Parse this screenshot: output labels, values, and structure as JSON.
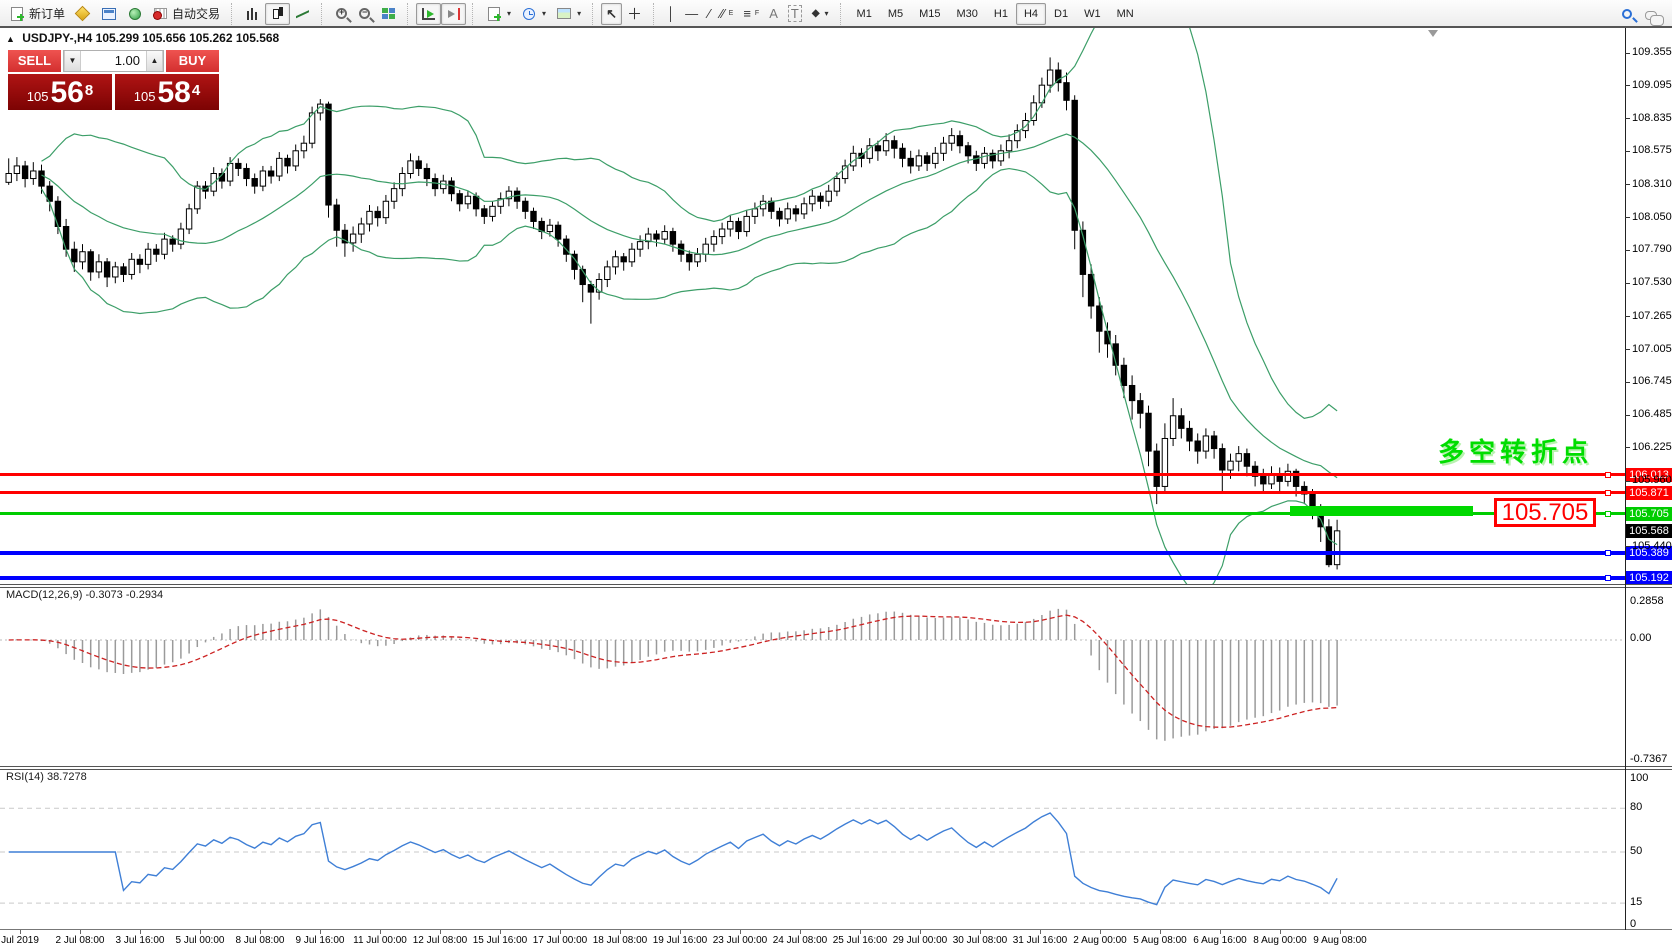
{
  "colors": {
    "line_red": "#ff0000",
    "line_green": "#00cc00",
    "line_blue": "#0000ff",
    "band_green": "#3c9e68",
    "rsi_blue": "#3f7fd6",
    "macd_signal": "#cc2222",
    "annotation_green": "#00dd00",
    "current_black": "#000000"
  },
  "toolbar": {
    "new_order": "新订单",
    "auto_trading": "自动交易",
    "channel_letter": "E",
    "fibonacci_letter": "F",
    "text_letter": "A",
    "label_letter": "T",
    "timeframes": [
      "M1",
      "M5",
      "M15",
      "M30",
      "H1",
      "H4",
      "D1",
      "W1",
      "MN"
    ],
    "active_timeframe": "H4"
  },
  "chart_header": {
    "symbol_period": "USDJPY-,H4",
    "open": "105.299",
    "high": "105.656",
    "low": "105.262",
    "close": "105.568"
  },
  "trade_panel": {
    "sell_label": "SELL",
    "buy_label": "BUY",
    "volume": "1.00",
    "sell_small": "105",
    "sell_big": "56",
    "sell_sup": "8",
    "buy_small": "105",
    "buy_big": "58",
    "buy_sup": "4"
  },
  "annotation": {
    "text": "多空转折点",
    "callout": "105.705"
  },
  "y_axis_ticks": [
    "109.355",
    "109.095",
    "108.835",
    "108.575",
    "108.310",
    "108.050",
    "107.790",
    "107.530",
    "107.265",
    "107.005",
    "106.745",
    "106.485",
    "106.225",
    "105.960",
    "105.440"
  ],
  "levels": [
    {
      "label": "106.013",
      "value": 106.013,
      "color": "#ff0000",
      "thickness": 3,
      "line": true
    },
    {
      "label": "105.871",
      "value": 105.871,
      "color": "#ff0000",
      "thickness": 3,
      "line": true
    },
    {
      "label": "105.705",
      "value": 105.705,
      "color": "#00cc00",
      "thickness": 3,
      "line": true
    },
    {
      "label": "105.568",
      "value": 105.568,
      "color": "#000000",
      "thickness": 0,
      "line": false
    },
    {
      "label": "105.389",
      "value": 105.389,
      "color": "#0000ff",
      "thickness": 4,
      "line": true
    },
    {
      "label": "105.192",
      "value": 105.192,
      "color": "#0000ff",
      "thickness": 4,
      "line": true
    }
  ],
  "macd_panel": {
    "name": "MACD(12,26,9)",
    "value_main": "-0.3073",
    "value_signal": "-0.2934",
    "scale_top": "0.2858",
    "scale_zero": "0.00",
    "scale_bottom": "-0.7367"
  },
  "rsi_panel": {
    "name": "RSI(14)",
    "value": "38.7278",
    "scale_labels": [
      "100",
      "80",
      "50",
      "15",
      "0"
    ],
    "level_lines": [
      80,
      50,
      15
    ]
  },
  "x_axis": [
    "Jul 2019",
    "2 Jul 08:00",
    "3 Jul 16:00",
    "5 Jul 00:00",
    "8 Jul 08:00",
    "9 Jul 16:00",
    "11 Jul 00:00",
    "12 Jul 08:00",
    "15 Jul 16:00",
    "17 Jul 00:00",
    "18 Jul 08:00",
    "19 Jul 16:00",
    "23 Jul 00:00",
    "24 Jul 08:00",
    "25 Jul 16:00",
    "29 Jul 00:00",
    "30 Jul 08:00",
    "31 Jul 16:00",
    "2 Aug 00:00",
    "5 Aug 08:00",
    "6 Aug 16:00",
    "8 Aug 00:00",
    "9 Aug 08:00"
  ],
  "chart_data": {
    "type": "candlestick",
    "symbol": "USDJPY-",
    "timeframe": "H4",
    "title": "USDJPY-,H4 105.299 105.656 105.262 105.568",
    "y_axis_visible_range": [
      105.18,
      109.4
    ],
    "current_price": 105.568,
    "horizontal_levels": [
      106.013,
      105.871,
      105.705,
      105.389,
      105.192
    ],
    "bollinger": {
      "period": 20,
      "deviation": 2
    },
    "macd": {
      "fast": 12,
      "slow": 26,
      "signal": 9,
      "current_main": -0.3073,
      "current_signal": -0.2934,
      "scale": [
        0.2858,
        0.0,
        -0.7367
      ]
    },
    "rsi": {
      "period": 14,
      "current": 38.7278,
      "levels": [
        80,
        50,
        15
      ]
    },
    "first_open": 108.33,
    "candles": [
      [
        108.52,
        108.31,
        108.4
      ],
      [
        108.53,
        108.34,
        108.46
      ],
      [
        108.5,
        108.29,
        108.36
      ],
      [
        108.49,
        108.31,
        108.42
      ],
      [
        108.47,
        108.24,
        108.3
      ],
      [
        108.34,
        108.1,
        108.18
      ],
      [
        108.22,
        107.92,
        107.98
      ],
      [
        108.04,
        107.74,
        107.8
      ],
      [
        107.86,
        107.62,
        107.7
      ],
      [
        107.84,
        107.64,
        107.78
      ],
      [
        107.8,
        107.55,
        107.62
      ],
      [
        107.76,
        107.57,
        107.7
      ],
      [
        107.73,
        107.5,
        107.58
      ],
      [
        107.7,
        107.53,
        107.66
      ],
      [
        107.69,
        107.54,
        107.6
      ],
      [
        107.77,
        107.56,
        107.72
      ],
      [
        107.76,
        107.61,
        107.68
      ],
      [
        107.85,
        107.64,
        107.8
      ],
      [
        107.84,
        107.7,
        107.76
      ],
      [
        107.93,
        107.72,
        107.88
      ],
      [
        107.91,
        107.78,
        107.84
      ],
      [
        108.01,
        107.8,
        107.96
      ],
      [
        108.16,
        107.92,
        108.12
      ],
      [
        108.34,
        108.08,
        108.3
      ],
      [
        108.34,
        108.2,
        108.26
      ],
      [
        108.45,
        108.22,
        108.4
      ],
      [
        108.44,
        108.28,
        108.34
      ],
      [
        108.53,
        108.3,
        108.48
      ],
      [
        108.52,
        108.38,
        108.44
      ],
      [
        108.48,
        108.3,
        108.36
      ],
      [
        108.4,
        108.24,
        108.3
      ],
      [
        108.46,
        108.26,
        108.42
      ],
      [
        108.46,
        108.32,
        108.38
      ],
      [
        108.57,
        108.34,
        108.52
      ],
      [
        108.55,
        108.4,
        108.46
      ],
      [
        108.63,
        108.42,
        108.58
      ],
      [
        108.7,
        108.52,
        108.64
      ],
      [
        108.93,
        108.6,
        108.88
      ],
      [
        108.99,
        108.82,
        108.95
      ],
      [
        108.97,
        108.05,
        108.15
      ],
      [
        108.2,
        107.82,
        107.95
      ],
      [
        108.0,
        107.74,
        107.85
      ],
      [
        107.98,
        107.78,
        107.92
      ],
      [
        108.05,
        107.85,
        108.0
      ],
      [
        108.15,
        107.94,
        108.1
      ],
      [
        108.14,
        107.98,
        108.05
      ],
      [
        108.23,
        108.0,
        108.18
      ],
      [
        108.33,
        108.12,
        108.28
      ],
      [
        108.45,
        108.22,
        108.4
      ],
      [
        108.56,
        108.36,
        108.5
      ],
      [
        108.54,
        108.38,
        108.44
      ],
      [
        108.48,
        108.3,
        108.36
      ],
      [
        108.4,
        108.22,
        108.28
      ],
      [
        108.39,
        108.24,
        108.34
      ],
      [
        108.37,
        108.18,
        108.24
      ],
      [
        108.27,
        108.1,
        108.16
      ],
      [
        108.26,
        108.12,
        108.22
      ],
      [
        108.25,
        108.06,
        108.12
      ],
      [
        108.15,
        108.0,
        108.06
      ],
      [
        108.18,
        108.02,
        108.14
      ],
      [
        108.25,
        108.08,
        108.2
      ],
      [
        108.3,
        108.14,
        108.26
      ],
      [
        108.29,
        108.12,
        108.18
      ],
      [
        108.21,
        108.04,
        108.1
      ],
      [
        108.13,
        107.96,
        108.02
      ],
      [
        108.05,
        107.88,
        107.94
      ],
      [
        108.04,
        107.9,
        107.99
      ],
      [
        108.02,
        107.82,
        107.88
      ],
      [
        107.91,
        107.7,
        107.76
      ],
      [
        107.79,
        107.56,
        107.64
      ],
      [
        107.67,
        107.38,
        107.52
      ],
      [
        107.55,
        107.21,
        107.46
      ],
      [
        107.61,
        107.4,
        107.56
      ],
      [
        107.71,
        107.5,
        107.66
      ],
      [
        107.79,
        107.6,
        107.74
      ],
      [
        107.77,
        107.63,
        107.7
      ],
      [
        107.85,
        107.66,
        107.8
      ],
      [
        107.91,
        107.74,
        107.86
      ],
      [
        107.97,
        107.8,
        107.92
      ],
      [
        107.95,
        107.82,
        107.88
      ],
      [
        107.99,
        107.84,
        107.94
      ],
      [
        107.97,
        107.78,
        107.84
      ],
      [
        107.87,
        107.7,
        107.76
      ],
      [
        107.79,
        107.63,
        107.7
      ],
      [
        107.81,
        107.66,
        107.76
      ],
      [
        107.89,
        107.7,
        107.84
      ],
      [
        107.95,
        107.78,
        107.9
      ],
      [
        108.01,
        107.84,
        107.96
      ],
      [
        108.07,
        107.9,
        108.02
      ],
      [
        108.05,
        107.88,
        107.94
      ],
      [
        108.11,
        107.9,
        108.06
      ],
      [
        108.17,
        108.0,
        108.12
      ],
      [
        108.23,
        108.06,
        108.18
      ],
      [
        108.21,
        108.04,
        108.1
      ],
      [
        108.13,
        107.98,
        108.04
      ],
      [
        108.17,
        108.0,
        108.12
      ],
      [
        108.15,
        108.02,
        108.08
      ],
      [
        108.21,
        108.04,
        108.16
      ],
      [
        108.27,
        108.1,
        108.22
      ],
      [
        108.25,
        108.12,
        108.18
      ],
      [
        108.31,
        108.14,
        108.26
      ],
      [
        108.41,
        108.22,
        108.36
      ],
      [
        108.51,
        108.32,
        108.46
      ],
      [
        108.62,
        108.42,
        108.56
      ],
      [
        108.6,
        108.45,
        108.52
      ],
      [
        108.68,
        108.48,
        108.62
      ],
      [
        108.66,
        108.5,
        108.58
      ],
      [
        108.72,
        108.54,
        108.66
      ],
      [
        108.7,
        108.52,
        108.6
      ],
      [
        108.64,
        108.45,
        108.52
      ],
      [
        108.58,
        108.4,
        108.46
      ],
      [
        108.59,
        108.42,
        108.54
      ],
      [
        108.57,
        108.42,
        108.48
      ],
      [
        108.61,
        108.44,
        108.56
      ],
      [
        108.69,
        108.5,
        108.64
      ],
      [
        108.76,
        108.58,
        108.7
      ],
      [
        108.74,
        108.56,
        108.62
      ],
      [
        108.65,
        108.48,
        108.54
      ],
      [
        108.58,
        108.42,
        108.48
      ],
      [
        108.61,
        108.44,
        108.56
      ],
      [
        108.59,
        108.44,
        108.5
      ],
      [
        108.63,
        108.46,
        108.58
      ],
      [
        108.71,
        108.52,
        108.66
      ],
      [
        108.79,
        108.6,
        108.74
      ],
      [
        108.88,
        108.68,
        108.82
      ],
      [
        109.02,
        108.78,
        108.96
      ],
      [
        109.16,
        108.92,
        109.1
      ],
      [
        109.32,
        109.04,
        109.22
      ],
      [
        109.28,
        109.05,
        109.12
      ],
      [
        109.2,
        108.9,
        108.98
      ],
      [
        109.02,
        107.8,
        107.95
      ],
      [
        108.02,
        107.42,
        107.6
      ],
      [
        107.68,
        107.25,
        107.35
      ],
      [
        107.42,
        106.98,
        107.15
      ],
      [
        107.22,
        106.94,
        107.05
      ],
      [
        107.12,
        106.8,
        106.88
      ],
      [
        106.94,
        106.62,
        106.72
      ],
      [
        106.8,
        106.45,
        106.6
      ],
      [
        106.66,
        106.38,
        106.5
      ],
      [
        106.56,
        106.08,
        106.2
      ],
      [
        106.26,
        105.78,
        105.92
      ],
      [
        106.42,
        105.88,
        106.3
      ],
      [
        106.62,
        106.24,
        106.48
      ],
      [
        106.54,
        106.3,
        106.38
      ],
      [
        106.44,
        106.2,
        106.28
      ],
      [
        106.34,
        106.1,
        106.2
      ],
      [
        106.38,
        106.14,
        106.32
      ],
      [
        106.36,
        106.14,
        106.22
      ],
      [
        106.26,
        105.88,
        106.05
      ],
      [
        106.18,
        105.98,
        106.12
      ],
      [
        106.24,
        106.04,
        106.18
      ],
      [
        106.22,
        106.0,
        106.08
      ],
      [
        106.12,
        105.92,
        106.0
      ],
      [
        106.06,
        105.86,
        105.94
      ],
      [
        106.08,
        105.9,
        106.02
      ],
      [
        106.07,
        105.88,
        105.96
      ],
      [
        106.1,
        105.92,
        106.04
      ],
      [
        106.06,
        105.84,
        105.92
      ],
      [
        105.96,
        105.78,
        105.86
      ],
      [
        105.9,
        105.66,
        105.74
      ],
      [
        105.78,
        105.48,
        105.6
      ],
      [
        105.66,
        105.28,
        105.3
      ],
      [
        105.656,
        105.262,
        105.568
      ]
    ]
  }
}
